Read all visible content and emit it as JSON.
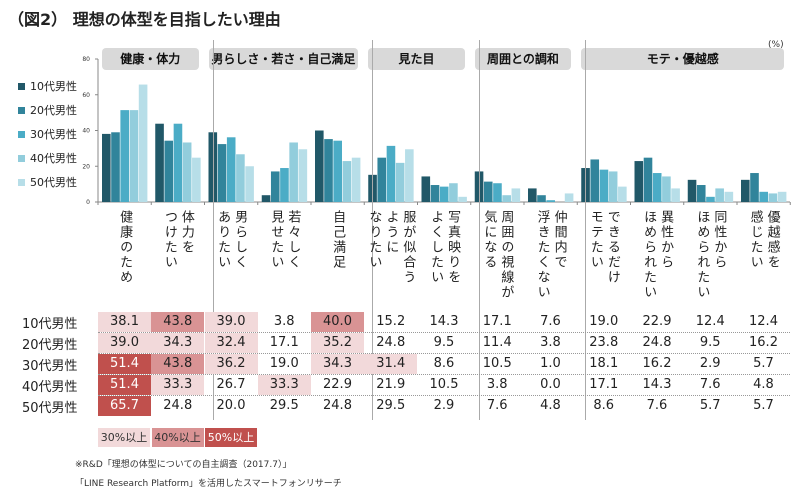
{
  "title": "（図2） 理想の体型を目指したい理由",
  "unit": "(%)",
  "footnotes": [
    "※R&D「理想の体型についての自主調査（2017.7）」",
    "「LINE Research Platform」を活用したスマートフォンリサーチ"
  ],
  "threshold_keys": [
    {
      "label": "30%以上",
      "color": "#f2d9da"
    },
    {
      "label": "40%以上",
      "color": "#d99394"
    },
    {
      "label": "50%以上",
      "color": "#c0504d"
    }
  ],
  "chart_data": {
    "type": "bar",
    "ylim": [
      0,
      80
    ],
    "yticks": [
      "0",
      "20",
      "40",
      "60",
      "80"
    ],
    "groups": [
      {
        "label": "健康・体力",
        "count": 2
      },
      {
        "label": "男らしさ・若さ・自己満足",
        "count": 3
      },
      {
        "label": "見た目",
        "count": 2
      },
      {
        "label": "周囲との調和",
        "count": 2
      },
      {
        "label": "モテ・優越感",
        "count": 4
      }
    ],
    "categories": [
      "健康のため",
      "体力を\nつけたい",
      "男らしく\nありたい",
      "若々しく\n見せたい",
      "自己満足",
      "服が似合う\nように\nなりたい",
      "写真映りを\nよくしたい",
      "周囲の視線が\n気になる",
      "仲間内で\n浮きたくない",
      "できるだけ\nモテたい",
      "異性から\nほめられたい",
      "同性から\nほめられたい",
      "優越感を\n感じたい"
    ],
    "series": [
      {
        "name": "10代男性",
        "color": "#215868",
        "values": [
          38.1,
          43.8,
          39.0,
          3.8,
          40.0,
          15.2,
          14.3,
          17.1,
          7.6,
          19.0,
          22.9,
          12.4,
          12.4
        ]
      },
      {
        "name": "20代男性",
        "color": "#31849b",
        "values": [
          39.0,
          34.3,
          32.4,
          17.1,
          35.2,
          24.8,
          9.5,
          11.4,
          3.8,
          23.8,
          24.8,
          9.5,
          16.2
        ]
      },
      {
        "name": "30代男性",
        "color": "#4bacc6",
        "values": [
          51.4,
          43.8,
          36.2,
          19.0,
          34.3,
          31.4,
          8.6,
          10.5,
          1.0,
          18.1,
          16.2,
          2.9,
          5.7
        ]
      },
      {
        "name": "40代男性",
        "color": "#92cddc",
        "values": [
          51.4,
          33.3,
          26.7,
          33.3,
          22.9,
          21.9,
          10.5,
          3.8,
          0.0,
          17.1,
          14.3,
          7.6,
          4.8
        ]
      },
      {
        "name": "50代男性",
        "color": "#b7dee8",
        "values": [
          65.7,
          24.8,
          20.0,
          29.5,
          24.8,
          29.5,
          2.9,
          7.6,
          4.8,
          8.6,
          7.6,
          5.7,
          5.7
        ]
      }
    ],
    "legend": "left"
  }
}
